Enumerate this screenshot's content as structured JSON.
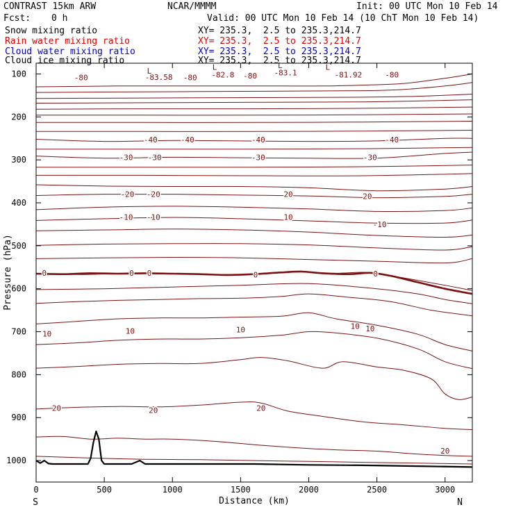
{
  "header": {
    "model": "CONTRAST 15km ARW",
    "center": "NCAR/MMMM",
    "init": "Init: 00 UTC Mon 10 Feb 14",
    "fcst_label": "Fcst:",
    "fcst_value": "0 h",
    "valid": "Valid: 00 UTC Mon 10 Feb 14 (10 ChT Mon 10 Feb 14)"
  },
  "legend": [
    {
      "label": "Snow mixing ratio",
      "xy": "XY= 235.3,  2.5 to 235.3,214.7",
      "color": "#000000"
    },
    {
      "label": "Rain water mixing ratio",
      "xy": "XY= 235.3,  2.5 to 235.3,214.7",
      "color": "#e00000"
    },
    {
      "label": "Cloud water mixing ratio",
      "xy": "XY= 235.3,  2.5 to 235.3,214.7",
      "color": "#0000cc"
    },
    {
      "label": "Cloud ice mixing ratio",
      "xy": "XY= 235.3,  2.5 to 235.3,214.7",
      "color": "#000000"
    }
  ],
  "chart_data": {
    "type": "line",
    "xlabel": "Distance (km)",
    "ylabel": "Pressure (hPa)",
    "xlim": [
      0,
      3200
    ],
    "ylim": [
      1050,
      75
    ],
    "x_ticks": [
      0,
      500,
      1000,
      1500,
      2000,
      2500,
      3000
    ],
    "y_ticks": [
      100,
      200,
      300,
      400,
      500,
      600,
      700,
      800,
      900,
      1000
    ],
    "x_end_labels": {
      "left": "S",
      "right": "N"
    },
    "contour_color": "#7a1010",
    "terrain_color": "#000000",
    "isotherm_lines": [
      {
        "x": [
          0,
          300,
          600,
          900,
          1200,
          1500,
          1800,
          2100,
          2400,
          2700,
          3000,
          3200
        ],
        "p": [
          130,
          129,
          128,
          128,
          128,
          128,
          128,
          128,
          126,
          122,
          110,
          100
        ]
      },
      {
        "x": [
          0,
          600,
          1200,
          1800,
          2400,
          2700,
          3000,
          3200
        ],
        "p": [
          143,
          142,
          141,
          140,
          139,
          136,
          128,
          120
        ]
      },
      {
        "x": [
          0,
          800,
          1600,
          2400,
          2800,
          3200
        ],
        "p": [
          157,
          156,
          155,
          154,
          152,
          147
        ]
      },
      {
        "x": [
          0,
          800,
          1600,
          2400,
          2800,
          3200
        ],
        "p": [
          168,
          167,
          166,
          165,
          163,
          160
        ]
      },
      {
        "x": [
          0,
          800,
          1600,
          2400,
          3200
        ],
        "p": [
          182,
          181,
          181,
          180,
          177
        ]
      },
      {
        "x": [
          0,
          800,
          1600,
          2400,
          3200
        ],
        "p": [
          196,
          196,
          196,
          195,
          193
        ]
      },
      {
        "x": [
          0,
          800,
          1600,
          2400,
          3200
        ],
        "p": [
          213,
          213,
          213,
          212,
          210
        ]
      },
      {
        "x": [
          0,
          800,
          1600,
          2400,
          3200
        ],
        "p": [
          234,
          234,
          234,
          233,
          231
        ]
      },
      {
        "x": [
          0,
          500,
          1000,
          1500,
          2000,
          2500,
          3000,
          3200
        ],
        "p": [
          252,
          257,
          255,
          256,
          257,
          256,
          250,
          250
        ]
      },
      {
        "x": [
          0,
          800,
          1600,
          2400,
          3200
        ],
        "p": [
          275,
          275,
          275,
          274,
          271
        ]
      },
      {
        "x": [
          0,
          500,
          1000,
          1500,
          2000,
          2500,
          3000,
          3200
        ],
        "p": [
          291,
          296,
          294,
          295,
          296,
          296,
          285,
          282
        ]
      },
      {
        "x": [
          0,
          800,
          1600,
          2400,
          3200
        ],
        "p": [
          317,
          317,
          317,
          316,
          312
        ]
      },
      {
        "x": [
          0,
          800,
          1600,
          2400,
          3200
        ],
        "p": [
          336,
          336,
          337,
          337,
          332
        ]
      },
      {
        "x": [
          0,
          500,
          1000,
          1500,
          2000,
          2500,
          3000,
          3200
        ],
        "p": [
          358,
          361,
          362,
          362,
          365,
          372,
          368,
          362
        ]
      },
      {
        "x": [
          0,
          500,
          1000,
          1500,
          2000,
          2500,
          3000,
          3200
        ],
        "p": [
          383,
          380,
          380,
          382,
          384,
          388,
          385,
          380
        ]
      },
      {
        "x": [
          0,
          500,
          1000,
          1500,
          2000,
          2500,
          3000,
          3200
        ],
        "p": [
          416,
          410,
          408,
          410,
          414,
          420,
          418,
          412
        ]
      },
      {
        "x": [
          0,
          500,
          1000,
          1500,
          2000,
          2500,
          3000,
          3200
        ],
        "p": [
          441,
          437,
          434,
          437,
          442,
          447,
          447,
          440
        ]
      },
      {
        "x": [
          0,
          500,
          1000,
          1500,
          2000,
          2500,
          3000,
          3200
        ],
        "p": [
          465,
          463,
          461,
          463,
          468,
          476,
          480,
          475
        ]
      },
      {
        "x": [
          0,
          500,
          1000,
          1500,
          2000,
          2500,
          3000,
          3200
        ],
        "p": [
          499,
          496,
          495,
          495,
          498,
          505,
          510,
          502
        ]
      },
      {
        "x": [
          0,
          500,
          1000,
          1500,
          2000,
          2500,
          3000,
          3200
        ],
        "p": [
          530,
          528,
          527,
          528,
          532,
          536,
          540,
          530
        ]
      },
      {
        "x": [
          0,
          300,
          600,
          900,
          1200,
          1500,
          1800,
          1950,
          2200,
          2450,
          2700,
          3000,
          3200
        ],
        "p": [
          565,
          567,
          565,
          564,
          566,
          567,
          563,
          561,
          564,
          562,
          575,
          592,
          604
        ]
      },
      {
        "x": [
          0,
          500,
          1000,
          1500,
          2000,
          2500,
          2800,
          3000,
          3200
        ],
        "p": [
          602,
          600,
          596,
          592,
          588,
          600,
          612,
          625,
          635
        ]
      },
      {
        "x": [
          0,
          300,
          600,
          900,
          1200,
          1500,
          1800,
          2000,
          2300,
          2600,
          2900,
          3200
        ],
        "p": [
          634,
          630,
          627,
          625,
          623,
          622,
          618,
          612,
          620,
          630,
          650,
          663
        ]
      },
      {
        "x": [
          0,
          300,
          600,
          900,
          1200,
          1500,
          1800,
          2000,
          2200,
          2500,
          2800,
          3000,
          3200
        ],
        "p": [
          682,
          676,
          670,
          668,
          668,
          666,
          664,
          656,
          670,
          685,
          706,
          730,
          745
        ]
      },
      {
        "x": [
          0,
          300,
          600,
          900,
          1200,
          1500,
          1800,
          2000,
          2200,
          2500,
          2800,
          3000,
          3200
        ],
        "p": [
          730,
          726,
          720,
          717,
          717,
          714,
          708,
          700,
          703,
          715,
          740,
          770,
          786
        ]
      },
      {
        "x": [
          0,
          300,
          600,
          900,
          1200,
          1500,
          1650,
          1850,
          2100,
          2250,
          2500,
          2700,
          2900,
          3000,
          3100,
          3200
        ],
        "p": [
          785,
          781,
          776,
          774,
          774,
          765,
          760,
          768,
          785,
          770,
          782,
          790,
          810,
          845,
          858,
          852
        ]
      },
      {
        "x": [
          0,
          300,
          600,
          900,
          1200,
          1500,
          1650,
          1850,
          2100,
          2400,
          2700,
          3000,
          3200
        ],
        "p": [
          880,
          876,
          874,
          875,
          871,
          864,
          866,
          885,
          897,
          910,
          917,
          925,
          928
        ]
      },
      {
        "x": [
          0,
          200,
          400,
          600,
          800,
          1000,
          1300,
          1600,
          1900,
          2200,
          2500,
          2800,
          3000,
          3200
        ],
        "p": [
          945,
          944,
          950,
          948,
          950,
          950,
          955,
          963,
          970,
          975,
          978,
          985,
          988,
          990
        ]
      },
      {
        "x": [
          0,
          400,
          800,
          1200,
          1600,
          2000,
          2400,
          2800,
          3200
        ],
        "p": [
          990,
          994,
          997,
          998,
          1000,
          1002,
          1004,
          1006,
          1008
        ]
      }
    ],
    "freezing_line": {
      "x": [
        0,
        200,
        400,
        600,
        800,
        1000,
        1200,
        1400,
        1600,
        1800,
        1950,
        2100,
        2300,
        2450,
        2600,
        2800,
        3000,
        3200
      ],
      "p": [
        565,
        566,
        564,
        565,
        564,
        565,
        566,
        568,
        566,
        562,
        560,
        564,
        566,
        563,
        570,
        585,
        600,
        612
      ]
    },
    "terrain": {
      "x": [
        0,
        30,
        60,
        90,
        120,
        150,
        200,
        300,
        380,
        400,
        420,
        440,
        460,
        480,
        500,
        600,
        700,
        760,
        800,
        840,
        900,
        1200,
        1600,
        2000,
        2400,
        2800,
        3200
      ],
      "p": [
        1000,
        1006,
        1000,
        1007,
        1008,
        1008,
        1008,
        1008,
        1008,
        995,
        958,
        932,
        950,
        1000,
        1008,
        1008,
        1008,
        1000,
        1008,
        1008,
        1008,
        1008,
        1008,
        1010,
        1011,
        1013,
        1015
      ]
    },
    "contour_labels": [
      {
        "text": "-80",
        "x": 330,
        "p": 108
      },
      {
        "text": "-83.58",
        "x": 900,
        "p": 107
      },
      {
        "text": "-80",
        "x": 1130,
        "p": 108
      },
      {
        "text": "-82.8",
        "x": 1370,
        "p": 102
      },
      {
        "text": "-80",
        "x": 1570,
        "p": 104
      },
      {
        "text": "-83.1",
        "x": 1830,
        "p": 97
      },
      {
        "text": "-81.92",
        "x": 2290,
        "p": 102
      },
      {
        "text": "-80",
        "x": 2610,
        "p": 102
      },
      {
        "text": "L",
        "x": 830,
        "p": 93
      },
      {
        "text": "L",
        "x": 1310,
        "p": 84
      },
      {
        "text": "L",
        "x": 1790,
        "p": 80
      },
      {
        "text": "L",
        "x": 2140,
        "p": 84
      },
      {
        "text": "-40",
        "x": 840,
        "p": 253
      },
      {
        "text": "-40",
        "x": 1110,
        "p": 253
      },
      {
        "text": "-40",
        "x": 1630,
        "p": 253
      },
      {
        "text": "-40",
        "x": 2610,
        "p": 253
      },
      {
        "text": "-30",
        "x": 660,
        "p": 294
      },
      {
        "text": "-30",
        "x": 870,
        "p": 294
      },
      {
        "text": "-30",
        "x": 1630,
        "p": 294
      },
      {
        "text": "-30",
        "x": 2450,
        "p": 294
      },
      {
        "text": "-20",
        "x": 670,
        "p": 380
      },
      {
        "text": "-20",
        "x": 860,
        "p": 380
      },
      {
        "text": "20",
        "x": 1850,
        "p": 380
      },
      {
        "text": "20",
        "x": 2430,
        "p": 385
      },
      {
        "text": "-10",
        "x": 660,
        "p": 433
      },
      {
        "text": "-10",
        "x": 860,
        "p": 433
      },
      {
        "text": "10",
        "x": 1850,
        "p": 433
      },
      {
        "text": "-10",
        "x": 2520,
        "p": 450
      },
      {
        "text": "0",
        "x": 60,
        "p": 563
      },
      {
        "text": "0",
        "x": 700,
        "p": 563
      },
      {
        "text": "0",
        "x": 830,
        "p": 563
      },
      {
        "text": "0",
        "x": 1610,
        "p": 567
      },
      {
        "text": "0",
        "x": 2490,
        "p": 565
      },
      {
        "text": "10",
        "x": 80,
        "p": 705
      },
      {
        "text": "10",
        "x": 690,
        "p": 698
      },
      {
        "text": "10",
        "x": 1500,
        "p": 695
      },
      {
        "text": "10",
        "x": 2340,
        "p": 687
      },
      {
        "text": "10",
        "x": 2450,
        "p": 693
      },
      {
        "text": "20",
        "x": 150,
        "p": 878
      },
      {
        "text": "20",
        "x": 860,
        "p": 883
      },
      {
        "text": "20",
        "x": 1650,
        "p": 878
      },
      {
        "text": "20",
        "x": 3000,
        "p": 977
      }
    ]
  }
}
